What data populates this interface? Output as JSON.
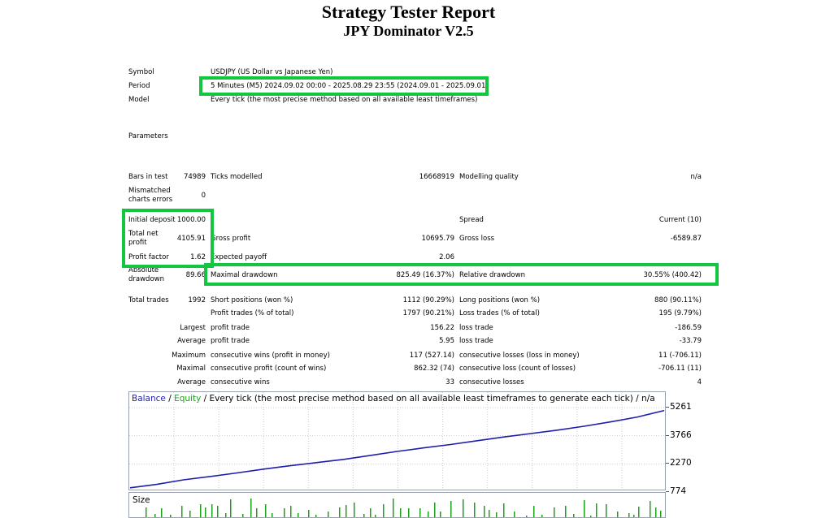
{
  "report": {
    "title": "Strategy Tester Report",
    "subtitle": "JPY Dominator V2.5"
  },
  "settings": {
    "symbol_label": "Symbol",
    "symbol_value": "USDJPY (US Dollar vs Japanese Yen)",
    "period_label": "Period",
    "period_value": "5 Minutes (M5) 2024.09.02 00:00 - 2025.08.29 23:55 (2024.09.01 - 2025.09.01)",
    "model_label": "Model",
    "model_value": "Every tick (the most precise method based on all available least timeframes)",
    "parameters_label": "Parameters"
  },
  "stats": {
    "bars_label": "Bars in test",
    "bars_value": "74989",
    "ticks_label": "Ticks modelled",
    "ticks_value": "16668919",
    "quality_label": "Modelling quality",
    "quality_value": "n/a",
    "mismatch_label_1": "Mismatched",
    "mismatch_label_2": "charts errors",
    "mismatch_value": "0",
    "deposit_label": "Initial deposit",
    "deposit_value": "1000.00",
    "spread_label": "Spread",
    "spread_value": "Current (10)",
    "net_label_1": "Total net",
    "net_label_2": "profit",
    "net_value": "4105.91",
    "gross_profit_label": "Gross profit",
    "gross_profit_value": "10695.79",
    "gross_loss_label": "Gross loss",
    "gross_loss_value": "-6589.87",
    "pf_label": "Profit factor",
    "pf_value": "1.62",
    "payoff_label": "Expected payoff",
    "payoff_value": "2.06",
    "abs_dd_label_1": "Absolute",
    "abs_dd_label_2": "drawdown",
    "abs_dd_value": "89.66",
    "max_dd_label": "Maximal drawdown",
    "max_dd_value": "825.49 (16.37%)",
    "rel_dd_label": "Relative drawdown",
    "rel_dd_value": "30.55% (400.42)",
    "trades_label": "Total trades",
    "trades_value": "1992",
    "short_label": "Short positions (won %)",
    "short_value": "1112 (90.29%)",
    "long_label": "Long positions (won %)",
    "long_value": "880 (90.11%)",
    "profit_trades_label": "Profit trades (% of total)",
    "profit_trades_value": "1797 (90.21%)",
    "loss_trades_label": "Loss trades (% of total)",
    "loss_trades_value": "195 (9.79%)",
    "largest_label": "Largest",
    "largest_pt_label": "profit trade",
    "largest_pt_value": "156.22",
    "largest_lt_label": "loss trade",
    "largest_lt_value": "-186.59",
    "average_label": "Average",
    "avg_pt_label": "profit trade",
    "avg_pt_value": "5.95",
    "avg_lt_label": "loss trade",
    "avg_lt_value": "-33.79",
    "maximum_label": "Maximum",
    "max_cw_label": "consecutive wins (profit in money)",
    "max_cw_value": "117 (527.14)",
    "max_cl_label": "consecutive losses (loss in money)",
    "max_cl_value": "11 (-706.11)",
    "maximal_label": "Maximal",
    "mxl_cp_label": "consecutive profit (count of wins)",
    "mxl_cp_value": "862.32 (74)",
    "mxl_cl_label": "consecutive loss (count of losses)",
    "mxl_cl_value": "-706.11 (11)",
    "average2_label": "Average",
    "avg_cw_label": "consecutive wins",
    "avg_cw_value": "33",
    "avg_cl_label": "consecutive losses",
    "avg_cl_value": "4"
  },
  "chart": {
    "legend_balance": "Balance",
    "legend_sep1": " / ",
    "legend_equity": "Equity",
    "legend_rest": " / Every tick (the most precise method based on all available least timeframes to generate each tick) / n/a",
    "y_labels": [
      "5261",
      "3766",
      "2270",
      "774"
    ],
    "size_label": "Size",
    "colors": {
      "balance": "#1f1fae",
      "equity": "#1aa31a",
      "highlight": "#12c63f"
    }
  },
  "chart_data": {
    "type": "line",
    "yticks": [
      5261,
      3766,
      2270,
      774
    ],
    "ylim": [
      774,
      5261
    ],
    "series": [
      {
        "name": "Balance",
        "x": [
          0,
          50,
          100,
          150,
          200,
          250,
          300,
          350,
          400,
          450,
          500,
          550,
          600,
          650,
          700,
          750,
          800,
          850,
          900,
          950,
          1000
        ],
        "values": [
          1000,
          1180,
          1420,
          1600,
          1790,
          1990,
          2170,
          2340,
          2510,
          2720,
          2930,
          3120,
          3300,
          3500,
          3700,
          3880,
          4060,
          4270,
          4500,
          4760,
          5105
        ]
      },
      {
        "name": "Equity",
        "x": [
          0,
          50,
          100,
          150,
          200,
          250,
          300,
          350,
          400,
          450,
          500,
          550,
          600,
          650,
          700,
          750,
          800,
          850,
          900,
          950,
          1000
        ],
        "values": [
          1000,
          1180,
          1420,
          1600,
          1790,
          1990,
          2170,
          2340,
          2510,
          2720,
          2930,
          3120,
          3300,
          3500,
          3700,
          3880,
          4060,
          4270,
          4500,
          4760,
          5105
        ]
      }
    ]
  }
}
